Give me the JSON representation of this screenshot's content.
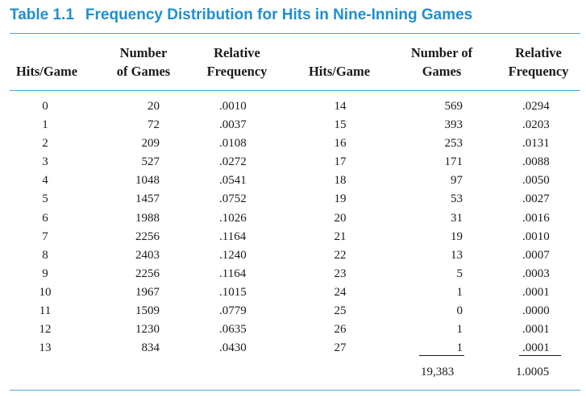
{
  "title": {
    "number": "Table 1.1",
    "text": "Frequency Distribution for Hits in Nine-Inning Games"
  },
  "headers": {
    "hits_left": "Hits/Game",
    "games_left": [
      "Number",
      "of Games"
    ],
    "rel_left": [
      "Relative",
      "Frequency"
    ],
    "hits_right": "Hits/Game",
    "games_right": [
      "Number of",
      "Games"
    ],
    "rel_right": [
      "Relative",
      "Frequency"
    ]
  },
  "left_rows": [
    [
      "0",
      "20",
      ".0010"
    ],
    [
      "1",
      "72",
      ".0037"
    ],
    [
      "2",
      "209",
      ".0108"
    ],
    [
      "3",
      "527",
      ".0272"
    ],
    [
      "4",
      "1048",
      ".0541"
    ],
    [
      "5",
      "1457",
      ".0752"
    ],
    [
      "6",
      "1988",
      ".1026"
    ],
    [
      "7",
      "2256",
      ".1164"
    ],
    [
      "8",
      "2403",
      ".1240"
    ],
    [
      "9",
      "2256",
      ".1164"
    ],
    [
      "10",
      "1967",
      ".1015"
    ],
    [
      "11",
      "1509",
      ".0779"
    ],
    [
      "12",
      "1230",
      ".0635"
    ],
    [
      "13",
      "834",
      ".0430"
    ]
  ],
  "right_rows": [
    [
      "14",
      "569",
      ".0294"
    ],
    [
      "15",
      "393",
      ".0203"
    ],
    [
      "16",
      "253",
      ".0131"
    ],
    [
      "17",
      "171",
      ".0088"
    ],
    [
      "18",
      "97",
      ".0050"
    ],
    [
      "19",
      "53",
      ".0027"
    ],
    [
      "20",
      "31",
      ".0016"
    ],
    [
      "21",
      "19",
      ".0010"
    ],
    [
      "22",
      "13",
      ".0007"
    ],
    [
      "23",
      "5",
      ".0003"
    ],
    [
      "24",
      "1",
      ".0001"
    ],
    [
      "25",
      "0",
      ".0000"
    ],
    [
      "26",
      "1",
      ".0001"
    ],
    [
      "27",
      "1",
      ".0001"
    ]
  ],
  "totals": {
    "games": "19,383",
    "relative": "1.0005"
  }
}
